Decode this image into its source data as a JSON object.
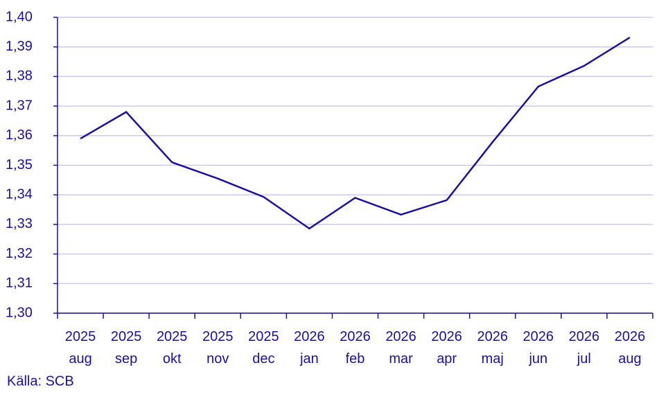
{
  "chart_data": {
    "type": "line",
    "categories": [
      "2025 aug",
      "2025 sep",
      "2025 okt",
      "2025 nov",
      "2025 dec",
      "2026 jan",
      "2026 feb",
      "2026 mar",
      "2026 apr",
      "2026 maj",
      "2026 jun",
      "2026 jul",
      "2026 aug"
    ],
    "values": [
      1.359,
      1.368,
      1.351,
      1.3455,
      1.3393,
      1.3286,
      1.339,
      1.3333,
      1.3382,
      1.3578,
      1.3766,
      1.3836,
      1.3932
    ],
    "color": "#1c0f9e",
    "ylim": [
      1.3,
      1.4
    ],
    "yticks": [
      {
        "value": 1.3,
        "label": "1,30"
      },
      {
        "value": 1.31,
        "label": "1,31"
      },
      {
        "value": 1.32,
        "label": "1,32"
      },
      {
        "value": 1.33,
        "label": "1,33"
      },
      {
        "value": 1.34,
        "label": "1,34"
      },
      {
        "value": 1.35,
        "label": "1,35"
      },
      {
        "value": 1.36,
        "label": "1,36"
      },
      {
        "value": 1.37,
        "label": "1,37"
      },
      {
        "value": 1.38,
        "label": "1,38"
      },
      {
        "value": 1.39,
        "label": "1,39"
      },
      {
        "value": 1.4,
        "label": "1,40"
      }
    ],
    "grid": true,
    "source": "Källa: SCB"
  }
}
